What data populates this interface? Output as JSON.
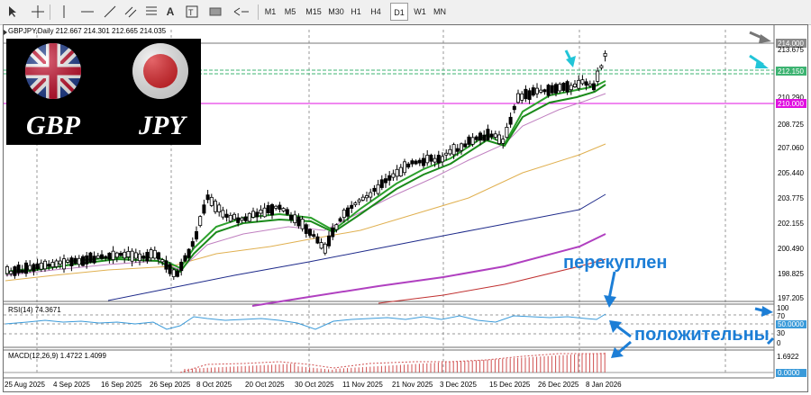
{
  "toolbar": {
    "timeframes": [
      "M1",
      "M5",
      "M15",
      "M30",
      "H1",
      "H4",
      "D1",
      "W1",
      "MN"
    ],
    "active_timeframe": "D1"
  },
  "chart": {
    "symbol_header": "GBPJPY,Daily  212.667 214.301 212.665 214.035",
    "price_ticks": [
      "214.000",
      "213.675",
      "212.150",
      "210.290",
      "210.000",
      "208.725",
      "207.060",
      "205.440",
      "203.775",
      "202.155",
      "200.490",
      "198.825",
      "197.205"
    ],
    "highlight_prices": {
      "last": "214.000",
      "green_level": "212.150",
      "magenta_level": "210.000"
    },
    "date_ticks": [
      "25 Aug 2025",
      "4 Sep 2025",
      "16 Sep 2025",
      "26 Sep 2025",
      "8 Oct 2025",
      "20 Oct 2025",
      "30 Oct 2025",
      "11 Nov 2025",
      "21 Nov 2025",
      "3 Dec 2025",
      "15 Dec 2025",
      "26 Dec 2025",
      "8 Jan 2026"
    ]
  },
  "rsi": {
    "header": "RSI(14) 74.3671",
    "ticks": [
      "100",
      "70",
      "50.0000",
      "30",
      "0"
    ]
  },
  "macd": {
    "header": "MACD(12,26,9) 1.4722 1.4099",
    "ticks": [
      "1.6922",
      "0.0000"
    ]
  },
  "flags": {
    "left_label": "GBP",
    "right_label": "JPY"
  },
  "annotations": {
    "overbought": "перекуплен",
    "positive": "положительны"
  },
  "colors": {
    "ema_fast": "#1a8a1a",
    "ema_fast2": "#2ca02c",
    "ema_mid": "#c080c0",
    "ema_slow": "#e0b050",
    "ema_200": "#1e2a8a",
    "ema_300": "#b040c0",
    "red_line": "#c03030",
    "green_level": "#3cb371",
    "magenta_level": "#e010e0",
    "rsi_line": "#3a9ad9",
    "macd_bars": "#d05050",
    "note_text": "#1c7ed6",
    "cyan_arrow": "#22c5d8"
  }
}
